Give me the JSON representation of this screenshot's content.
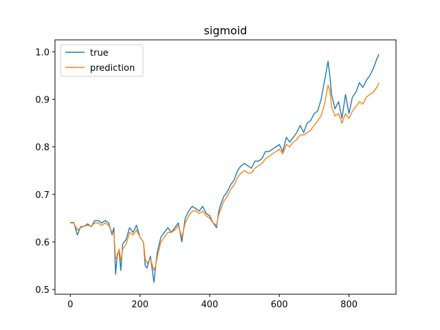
{
  "chart_data": {
    "type": "line",
    "title": "sigmoid",
    "xlabel": "",
    "ylabel": "",
    "xlim": [
      -44,
      935
    ],
    "ylim": [
      0.49,
      1.025
    ],
    "xticks": [
      0,
      200,
      400,
      600,
      800
    ],
    "yticks": [
      0.5,
      0.6,
      0.7,
      0.8,
      0.9,
      1.0
    ],
    "ytick_labels": [
      "0.5",
      "0.6",
      "0.7",
      "0.8",
      "0.9",
      "1.0"
    ],
    "legend": {
      "placement": "upper-left",
      "frame": true
    },
    "grid": false,
    "series": [
      {
        "name": "true",
        "color": "#1f77b4",
        "x": [
          0,
          10,
          20,
          30,
          40,
          50,
          60,
          70,
          80,
          90,
          100,
          110,
          120,
          125,
          130,
          135,
          140,
          145,
          150,
          160,
          170,
          180,
          190,
          200,
          210,
          215,
          220,
          230,
          240,
          245,
          250,
          260,
          270,
          280,
          290,
          300,
          310,
          320,
          330,
          340,
          350,
          360,
          370,
          380,
          390,
          400,
          410,
          420,
          425,
          430,
          440,
          450,
          460,
          470,
          480,
          490,
          500,
          510,
          520,
          530,
          540,
          550,
          560,
          570,
          580,
          590,
          600,
          610,
          620,
          630,
          640,
          650,
          660,
          670,
          680,
          690,
          700,
          710,
          720,
          730,
          740,
          745,
          750,
          760,
          770,
          780,
          790,
          800,
          810,
          820,
          830,
          840,
          850,
          860,
          870,
          880,
          886
        ],
        "y": [
          0.641,
          0.641,
          0.615,
          0.632,
          0.633,
          0.638,
          0.632,
          0.645,
          0.645,
          0.64,
          0.645,
          0.64,
          0.615,
          0.63,
          0.532,
          0.575,
          0.58,
          0.54,
          0.595,
          0.605,
          0.63,
          0.62,
          0.635,
          0.61,
          0.6,
          0.55,
          0.545,
          0.57,
          0.515,
          0.55,
          0.58,
          0.61,
          0.62,
          0.63,
          0.62,
          0.63,
          0.64,
          0.6,
          0.65,
          0.665,
          0.675,
          0.67,
          0.665,
          0.675,
          0.66,
          0.655,
          0.64,
          0.63,
          0.66,
          0.675,
          0.695,
          0.705,
          0.72,
          0.73,
          0.75,
          0.76,
          0.765,
          0.76,
          0.755,
          0.77,
          0.77,
          0.775,
          0.79,
          0.79,
          0.795,
          0.8,
          0.805,
          0.79,
          0.82,
          0.81,
          0.82,
          0.83,
          0.845,
          0.83,
          0.85,
          0.855,
          0.87,
          0.875,
          0.9,
          0.94,
          0.98,
          0.95,
          0.91,
          0.88,
          0.895,
          0.86,
          0.91,
          0.87,
          0.905,
          0.915,
          0.935,
          0.925,
          0.94,
          0.95,
          0.965,
          0.985,
          0.995
        ]
      },
      {
        "name": "prediction",
        "color": "#ff7f0e",
        "x": [
          0,
          10,
          20,
          30,
          40,
          50,
          60,
          70,
          80,
          90,
          100,
          110,
          120,
          125,
          130,
          135,
          140,
          145,
          150,
          160,
          170,
          180,
          190,
          200,
          210,
          215,
          220,
          230,
          240,
          245,
          250,
          260,
          270,
          280,
          290,
          300,
          310,
          320,
          330,
          340,
          350,
          360,
          370,
          380,
          390,
          400,
          410,
          420,
          425,
          430,
          440,
          450,
          460,
          470,
          480,
          490,
          500,
          510,
          520,
          530,
          540,
          550,
          560,
          570,
          580,
          590,
          600,
          610,
          620,
          630,
          640,
          650,
          660,
          670,
          680,
          690,
          700,
          710,
          720,
          730,
          740,
          745,
          750,
          760,
          770,
          780,
          790,
          800,
          810,
          820,
          830,
          840,
          850,
          860,
          870,
          880,
          886
        ],
        "y": [
          0.64,
          0.64,
          0.625,
          0.63,
          0.633,
          0.635,
          0.633,
          0.64,
          0.64,
          0.635,
          0.64,
          0.635,
          0.62,
          0.62,
          0.565,
          0.57,
          0.585,
          0.56,
          0.585,
          0.595,
          0.62,
          0.615,
          0.625,
          0.61,
          0.6,
          0.565,
          0.555,
          0.565,
          0.54,
          0.55,
          0.57,
          0.6,
          0.61,
          0.62,
          0.62,
          0.625,
          0.635,
          0.61,
          0.64,
          0.655,
          0.665,
          0.665,
          0.66,
          0.665,
          0.655,
          0.65,
          0.64,
          0.635,
          0.655,
          0.665,
          0.685,
          0.695,
          0.71,
          0.72,
          0.735,
          0.745,
          0.75,
          0.745,
          0.745,
          0.755,
          0.76,
          0.765,
          0.775,
          0.78,
          0.785,
          0.79,
          0.795,
          0.785,
          0.805,
          0.8,
          0.81,
          0.815,
          0.825,
          0.825,
          0.83,
          0.835,
          0.845,
          0.855,
          0.865,
          0.89,
          0.93,
          0.92,
          0.885,
          0.865,
          0.87,
          0.85,
          0.87,
          0.86,
          0.875,
          0.885,
          0.895,
          0.89,
          0.905,
          0.91,
          0.915,
          0.925,
          0.935
        ]
      }
    ]
  }
}
